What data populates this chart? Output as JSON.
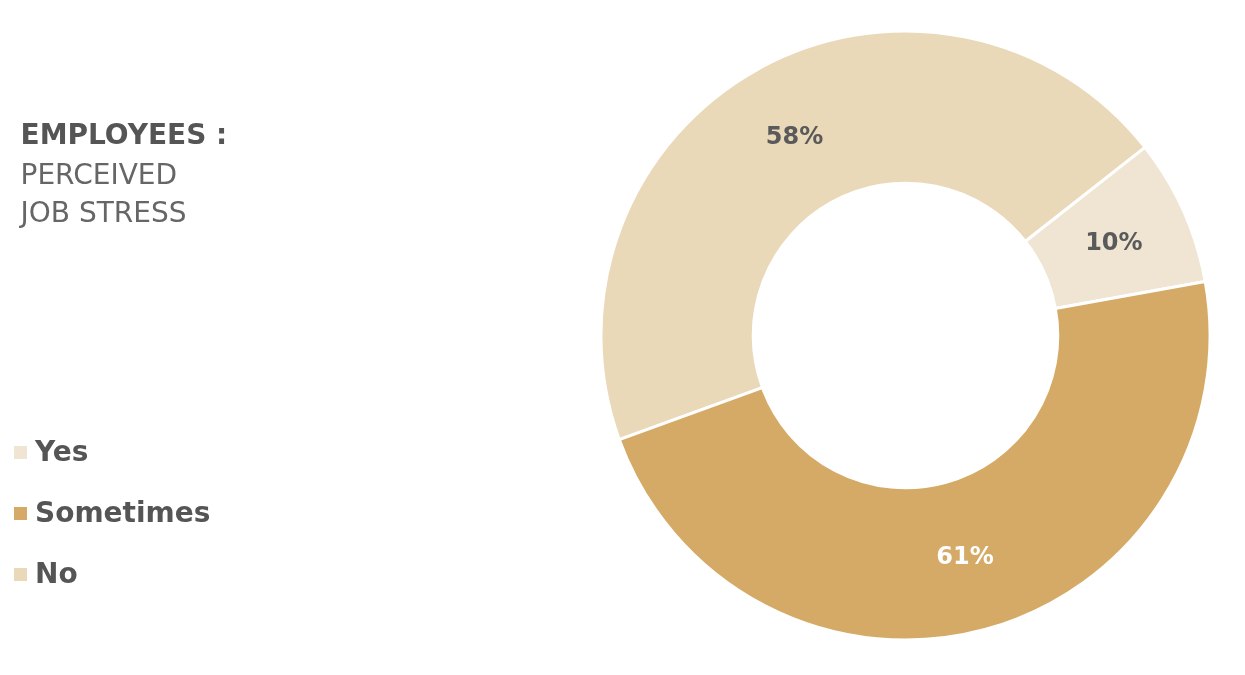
{
  "chart_data": {
    "type": "donut",
    "title": "EMPLOYEES :",
    "subtitle": "PERCEIVED JOB STRESS",
    "categories": [
      "No",
      "Yes",
      "Sometimes"
    ],
    "values": [
      58,
      10,
      61
    ],
    "value_labels": [
      "58%",
      "10%",
      "61%"
    ],
    "colors": [
      "#ead9b8",
      "#f0e5d3",
      "#d4aa66"
    ],
    "legend": "left"
  }
}
